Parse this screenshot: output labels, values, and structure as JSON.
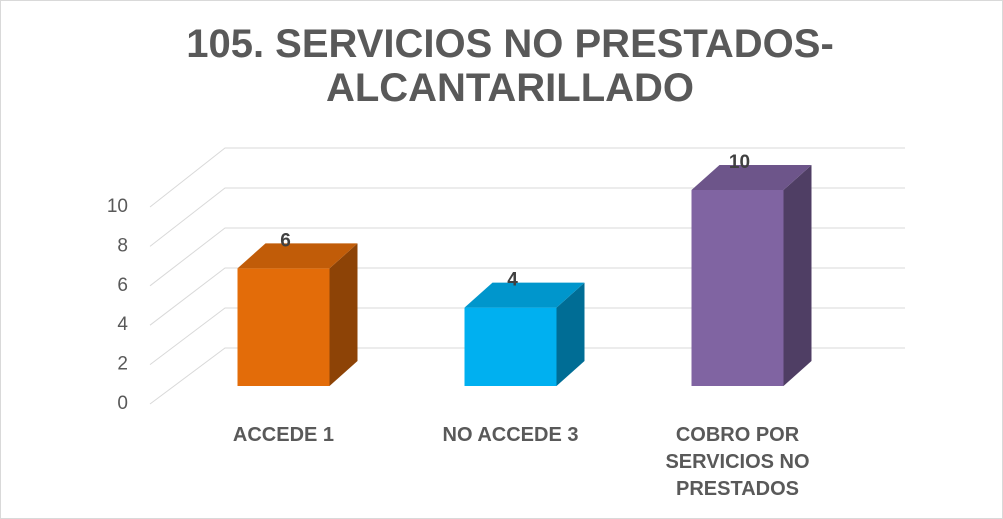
{
  "chart_data": {
    "type": "bar3d",
    "title": "105. SERVICIOS NO PRESTADOS-ALCANTARILLADO",
    "categories": [
      "ACCEDE 1",
      "NO ACCEDE 3",
      "COBRO POR SERVICIOS NO PRESTADOS"
    ],
    "values": [
      6,
      4,
      10
    ],
    "colors": [
      "#e36c09",
      "#00b0f0",
      "#8064a2"
    ],
    "ylim": [
      0,
      10
    ],
    "yticks": [
      0,
      2,
      4,
      6,
      8,
      10
    ],
    "grid": true
  }
}
